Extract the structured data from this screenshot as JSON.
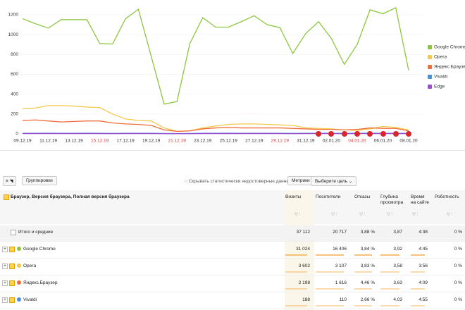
{
  "chart_data": {
    "type": "line",
    "categories": [
      "09.12.19",
      null,
      "11.12.19",
      null,
      "13.12.19",
      null,
      "15.12.19",
      null,
      "17.12.19",
      null,
      "19.12.19",
      null,
      "21.12.19",
      null,
      "23.12.19",
      null,
      "25.12.19",
      null,
      "27.12.19",
      null,
      "29.12.19",
      null,
      "31.12.19",
      null,
      "02.01.20",
      null,
      "04.01.20",
      null,
      "06.01.20",
      null,
      "08.01.20"
    ],
    "category_label_colors": [
      "#333333",
      null,
      "#333333",
      null,
      "#333333",
      null,
      "#e03a3a",
      null,
      "#333333",
      null,
      "#333333",
      null,
      "#e03a3a",
      null,
      "#333333",
      null,
      "#333333",
      null,
      "#333333",
      null,
      "#e03a3a",
      null,
      "#333333",
      null,
      "#333333",
      null,
      "#e03a3a",
      null,
      "#333333",
      null,
      "#333333"
    ],
    "series": [
      {
        "name": "Google Chrome",
        "color": "#8cc63f",
        "values": [
          1160,
          1110,
          1065,
          1150,
          1150,
          1150,
          910,
          905,
          1160,
          1255,
          780,
          300,
          325,
          910,
          1170,
          1075,
          1075,
          1130,
          1190,
          1100,
          1070,
          810,
          1010,
          1130,
          960,
          700,
          900,
          1250,
          1210,
          1270,
          640
        ]
      },
      {
        "name": "Opera",
        "color": "#f5c84a",
        "values": [
          255,
          260,
          285,
          285,
          280,
          270,
          265,
          200,
          150,
          135,
          130,
          60,
          25,
          30,
          60,
          80,
          95,
          100,
          100,
          95,
          90,
          85,
          60,
          55,
          50,
          40,
          35,
          50,
          75,
          65,
          40
        ]
      },
      {
        "name": "Яндекс.Браузер",
        "color": "#f26b3a",
        "values": [
          135,
          140,
          130,
          120,
          125,
          130,
          130,
          110,
          100,
          95,
          85,
          40,
          25,
          30,
          50,
          60,
          65,
          60,
          60,
          60,
          60,
          55,
          50,
          45,
          45,
          40,
          45,
          60,
          55,
          55,
          30
        ]
      },
      {
        "name": "Vivaldi",
        "color": "#4a90d9",
        "values": [
          6,
          6,
          7,
          6,
          6,
          7,
          6,
          5,
          6,
          6,
          6,
          4,
          3,
          4,
          6,
          6,
          7,
          6,
          6,
          6,
          6,
          5,
          6,
          6,
          6,
          5,
          6,
          7,
          6,
          6,
          5
        ]
      },
      {
        "name": "Edge",
        "color": "#9b4fd0",
        "values": [
          3,
          3,
          3,
          3,
          3,
          3,
          3,
          2,
          3,
          3,
          3,
          2,
          2,
          2,
          3,
          3,
          3,
          3,
          3,
          3,
          3,
          2,
          3,
          3,
          3,
          2,
          3,
          3,
          3,
          3,
          2
        ]
      }
    ],
    "ylim": [
      0,
      1320
    ],
    "yticks": [
      0,
      200,
      400,
      600,
      800,
      1000,
      1200
    ],
    "grid": true,
    "legend": "right"
  },
  "toolbar": {
    "groupings": "Группировки",
    "hide_unreliable": "Скрывать статистически недостоверные данные",
    "metrics": "Метрики",
    "goal": "Выберите цель"
  },
  "table": {
    "dimension": "Браузер, Версия браузера, Полная версия браузера",
    "columns": [
      "Визиты",
      "Посетители",
      "Отказы",
      "Глубина просмотра",
      "Время на сайте",
      "Роботность"
    ],
    "rows": [
      {
        "label": "Итого и средние",
        "cells": [
          "37 112",
          "20 717",
          "3,88 %",
          "3,87",
          "4:38",
          "0 %"
        ]
      },
      {
        "label": "Google Chrome",
        "cells": [
          "31 024",
          "16 406",
          "3,84 %",
          "3,92",
          "4:45",
          "0 %"
        ]
      },
      {
        "label": "Opera",
        "cells": [
          "3 602",
          "3 107",
          "3,83 %",
          "3,58",
          "3:56",
          "0 %"
        ]
      },
      {
        "label": "Яндекс.Браузер",
        "cells": [
          "2 198",
          "1 616",
          "4,46 %",
          "3,63",
          "4:09",
          "0 %"
        ]
      },
      {
        "label": "Vivaldi",
        "cells": [
          "188",
          "110",
          "2,66 %",
          "4,03",
          "4:55",
          "0 %"
        ]
      }
    ]
  }
}
